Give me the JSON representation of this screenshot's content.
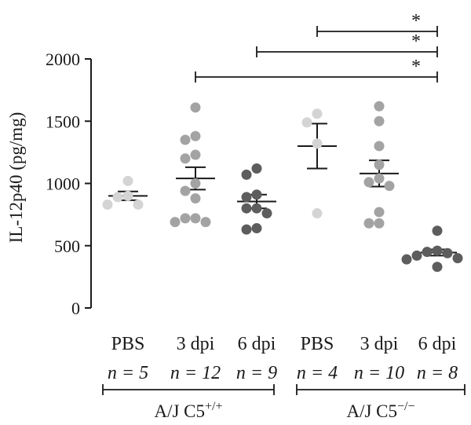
{
  "chart_data": {
    "type": "scatter",
    "ylabel": "IL-12p40 (pg/mg)",
    "ylim": [
      0,
      2000
    ],
    "yticks": [
      0,
      500,
      1000,
      1500,
      2000
    ],
    "grid": false,
    "groups": [
      {
        "label": "PBS",
        "n_label": "n = 5",
        "color": "#d4d4d4",
        "points": [
          1020,
          900,
          890,
          830,
          830
        ],
        "mean": 900,
        "sem": 35
      },
      {
        "label": "3 dpi",
        "n_label": "n = 12",
        "color": "#a3a3a3",
        "points": [
          1610,
          1380,
          1350,
          1230,
          1200,
          1000,
          940,
          880,
          720,
          720,
          690,
          690
        ],
        "mean": 1040,
        "sem": 90
      },
      {
        "label": "6 dpi",
        "n_label": "n = 9",
        "color": "#5d5d5d",
        "points": [
          1120,
          1070,
          910,
          890,
          800,
          800,
          760,
          640,
          630
        ],
        "mean": 855,
        "sem": 55
      },
      {
        "label": "PBS",
        "n_label": "n = 4",
        "color": "#d4d4d4",
        "points": [
          1560,
          1490,
          1320,
          760
        ],
        "mean": 1300,
        "sem": 180
      },
      {
        "label": "3 dpi",
        "n_label": "n = 10",
        "color": "#a3a3a3",
        "points": [
          1620,
          1500,
          1300,
          1150,
          1040,
          1010,
          980,
          770,
          680,
          680
        ],
        "mean": 1080,
        "sem": 105
      },
      {
        "label": "6 dpi",
        "n_label": "n = 8",
        "color": "#5d5d5d",
        "points": [
          620,
          460,
          450,
          440,
          420,
          400,
          390,
          330
        ],
        "mean": 445,
        "sem": 25
      }
    ],
    "brackets": [
      {
        "label": "A/J C5",
        "superscript": "+/+",
        "from_group": 0,
        "to_group": 2
      },
      {
        "label": "A/J C5",
        "superscript": "−/−",
        "from_group": 3,
        "to_group": 5
      }
    ],
    "significance": [
      {
        "from_group": 3,
        "to_group": 5,
        "mark": "*"
      },
      {
        "from_group": 2,
        "to_group": 5,
        "mark": "*"
      },
      {
        "from_group": 1,
        "to_group": 5,
        "mark": "*"
      }
    ]
  }
}
